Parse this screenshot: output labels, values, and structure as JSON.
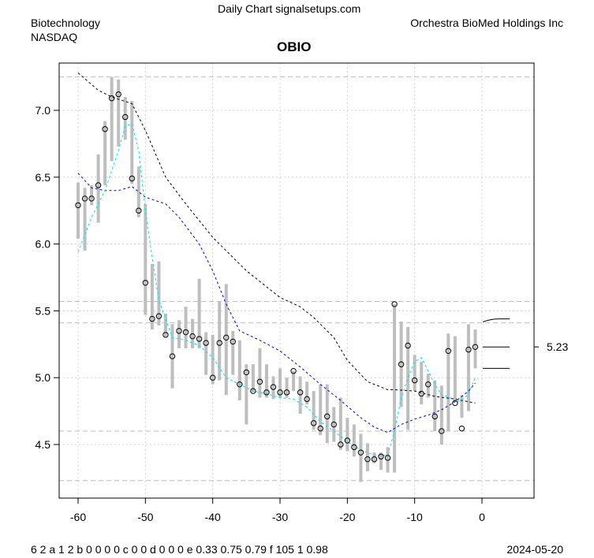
{
  "header": {
    "site": "Daily Chart signalsetups.com",
    "sector": "Biotechnology",
    "exchange": "NASDAQ",
    "company": "Orchestra BioMed Holdings Inc"
  },
  "footer": {
    "codes": "6 2 a 1 2 b 0 0 0 0 c 0 0 d 0 0 0 e 0.33 0.75 0.79 f 105 1 0.98",
    "date": "2024-05-20"
  },
  "colors": {
    "bar": "#bebebe",
    "long_ma": "#000000",
    "mid_ma": "#0000ee",
    "short_ma": "#00e5ee",
    "ref": "#bebebe"
  },
  "chart_data": {
    "type": "line",
    "title": "OBIO",
    "xlim": [
      -63,
      7.5
    ],
    "ylim": [
      4.15,
      7.38
    ],
    "xticks": [
      -60,
      -50,
      -40,
      -30,
      -20,
      -10,
      0
    ],
    "yticks": [
      4.5,
      5.0,
      5.5,
      6.0,
      6.5,
      7.0
    ],
    "grid": true,
    "last_label": "5.23",
    "x": [
      -60,
      -59,
      -58,
      -57,
      -56,
      -55,
      -54,
      -53,
      -52,
      -51,
      -50,
      -49,
      -48,
      -47,
      -46,
      -45,
      -44,
      -43,
      -42,
      -41,
      -40,
      -39,
      -38,
      -37,
      -36,
      -35,
      -34,
      -33,
      -32,
      -31,
      -30,
      -29,
      -28,
      -27,
      -26,
      -25,
      -24,
      -23,
      -22,
      -21,
      -20,
      -19,
      -18,
      -17,
      -16,
      -15,
      -14,
      -13,
      -12,
      -11,
      -10,
      -9,
      -8,
      -7,
      -6,
      -5,
      -4,
      -3,
      -2,
      -1
    ],
    "close": [
      6.29,
      6.34,
      6.34,
      6.44,
      6.86,
      7.09,
      7.12,
      6.95,
      6.49,
      6.25,
      5.71,
      5.44,
      5.46,
      5.32,
      5.16,
      5.35,
      5.34,
      5.31,
      5.29,
      5.26,
      5.0,
      5.26,
      5.3,
      5.27,
      4.95,
      5.04,
      4.9,
      4.97,
      4.89,
      4.93,
      4.89,
      4.89,
      5.05,
      4.89,
      4.84,
      4.66,
      4.62,
      4.71,
      4.65,
      4.5,
      4.53,
      4.48,
      4.44,
      4.39,
      4.39,
      4.41,
      4.4,
      5.55,
      5.1,
      5.24,
      4.98,
      4.88,
      4.95,
      4.71,
      4.6,
      5.2,
      4.81,
      4.62,
      5.21,
      5.23
    ],
    "high": [
      6.46,
      6.42,
      6.44,
      6.67,
      6.92,
      7.25,
      7.23,
      7.1,
      7.07,
      6.58,
      6.3,
      5.85,
      5.87,
      5.48,
      5.4,
      5.43,
      5.53,
      5.44,
      5.74,
      5.34,
      5.32,
      5.57,
      5.7,
      5.35,
      5.28,
      5.1,
      5.1,
      5.22,
      5.1,
      5.01,
      5.07,
      5.0,
      5.05,
      5.01,
      4.97,
      4.9,
      4.95,
      4.95,
      4.78,
      4.85,
      4.7,
      4.65,
      4.58,
      4.51,
      4.44,
      4.44,
      4.48,
      5.55,
      5.42,
      5.38,
      5.17,
      5.12,
      5.03,
      4.98,
      4.94,
      5.33,
      5.31,
      4.87,
      5.4,
      5.36
    ],
    "low": [
      6.04,
      5.95,
      6.29,
      6.16,
      6.44,
      6.62,
      6.73,
      6.78,
      6.45,
      6.2,
      5.47,
      5.36,
      5.39,
      5.3,
      4.92,
      5.22,
      5.22,
      5.22,
      5.22,
      5.02,
      4.95,
      4.98,
      4.87,
      5.02,
      4.83,
      4.65,
      4.89,
      4.85,
      4.85,
      4.84,
      4.85,
      4.85,
      4.9,
      4.73,
      4.8,
      4.61,
      4.57,
      4.51,
      4.52,
      4.46,
      4.45,
      4.41,
      4.22,
      4.3,
      4.36,
      4.31,
      4.29,
      4.29,
      4.78,
      4.61,
      4.9,
      4.8,
      4.85,
      4.6,
      4.5,
      4.6,
      4.82,
      4.7,
      4.75,
      5.07
    ],
    "series": [
      {
        "name": "long-ma",
        "x": [
          -60,
          -57,
          -55,
          -52,
          -50,
          -47,
          -44,
          -40,
          -35,
          -30,
          -27,
          -25,
          -22,
          -20,
          -17,
          -14,
          -13,
          -10,
          -7,
          -4,
          -1
        ],
        "values": [
          7.28,
          7.15,
          7.1,
          7.05,
          6.85,
          6.5,
          6.3,
          6.05,
          5.8,
          5.6,
          5.53,
          5.45,
          5.3,
          5.13,
          4.97,
          4.91,
          4.91,
          4.9,
          4.86,
          4.84,
          4.81
        ]
      },
      {
        "name": "mid-ma",
        "x": [
          -60,
          -58,
          -56,
          -54,
          -52,
          -50,
          -47,
          -45,
          -42,
          -40,
          -38,
          -36,
          -33,
          -30,
          -27,
          -24,
          -21,
          -18,
          -16,
          -14,
          -12,
          -10,
          -8,
          -6,
          -4,
          -2,
          -1
        ],
        "values": [
          6.53,
          6.42,
          6.4,
          6.4,
          6.43,
          6.35,
          6.3,
          6.2,
          6.0,
          5.8,
          5.55,
          5.35,
          5.28,
          5.2,
          5.08,
          4.95,
          4.83,
          4.7,
          4.63,
          4.59,
          4.65,
          4.69,
          4.72,
          4.76,
          4.82,
          4.9,
          4.96
        ]
      },
      {
        "name": "short-ma",
        "x": [
          -60,
          -58,
          -56,
          -54,
          -53,
          -52,
          -51,
          -50,
          -49,
          -48,
          -46,
          -44,
          -42,
          -40,
          -38,
          -36,
          -34,
          -32,
          -30,
          -28,
          -26,
          -24,
          -22,
          -20,
          -18,
          -16,
          -14,
          -13,
          -12,
          -11,
          -10,
          -9,
          -8,
          -7,
          -6,
          -5,
          -4,
          -3,
          -2,
          -1
        ],
        "values": [
          5.94,
          6.2,
          6.4,
          6.7,
          6.88,
          6.9,
          6.7,
          6.25,
          5.9,
          5.58,
          5.3,
          5.28,
          5.24,
          5.15,
          5.0,
          4.95,
          4.9,
          4.88,
          4.85,
          4.84,
          4.78,
          4.67,
          4.6,
          4.52,
          4.46,
          4.42,
          4.42,
          4.6,
          4.85,
          5.0,
          5.12,
          5.15,
          5.05,
          4.95,
          4.87,
          4.86,
          4.82,
          4.83,
          4.88,
          5.0
        ]
      }
    ],
    "ref_lines": [
      7.25,
      5.57,
      5.41,
      4.6,
      4.23
    ],
    "projection": [
      5.44,
      5.23,
      5.07
    ]
  }
}
